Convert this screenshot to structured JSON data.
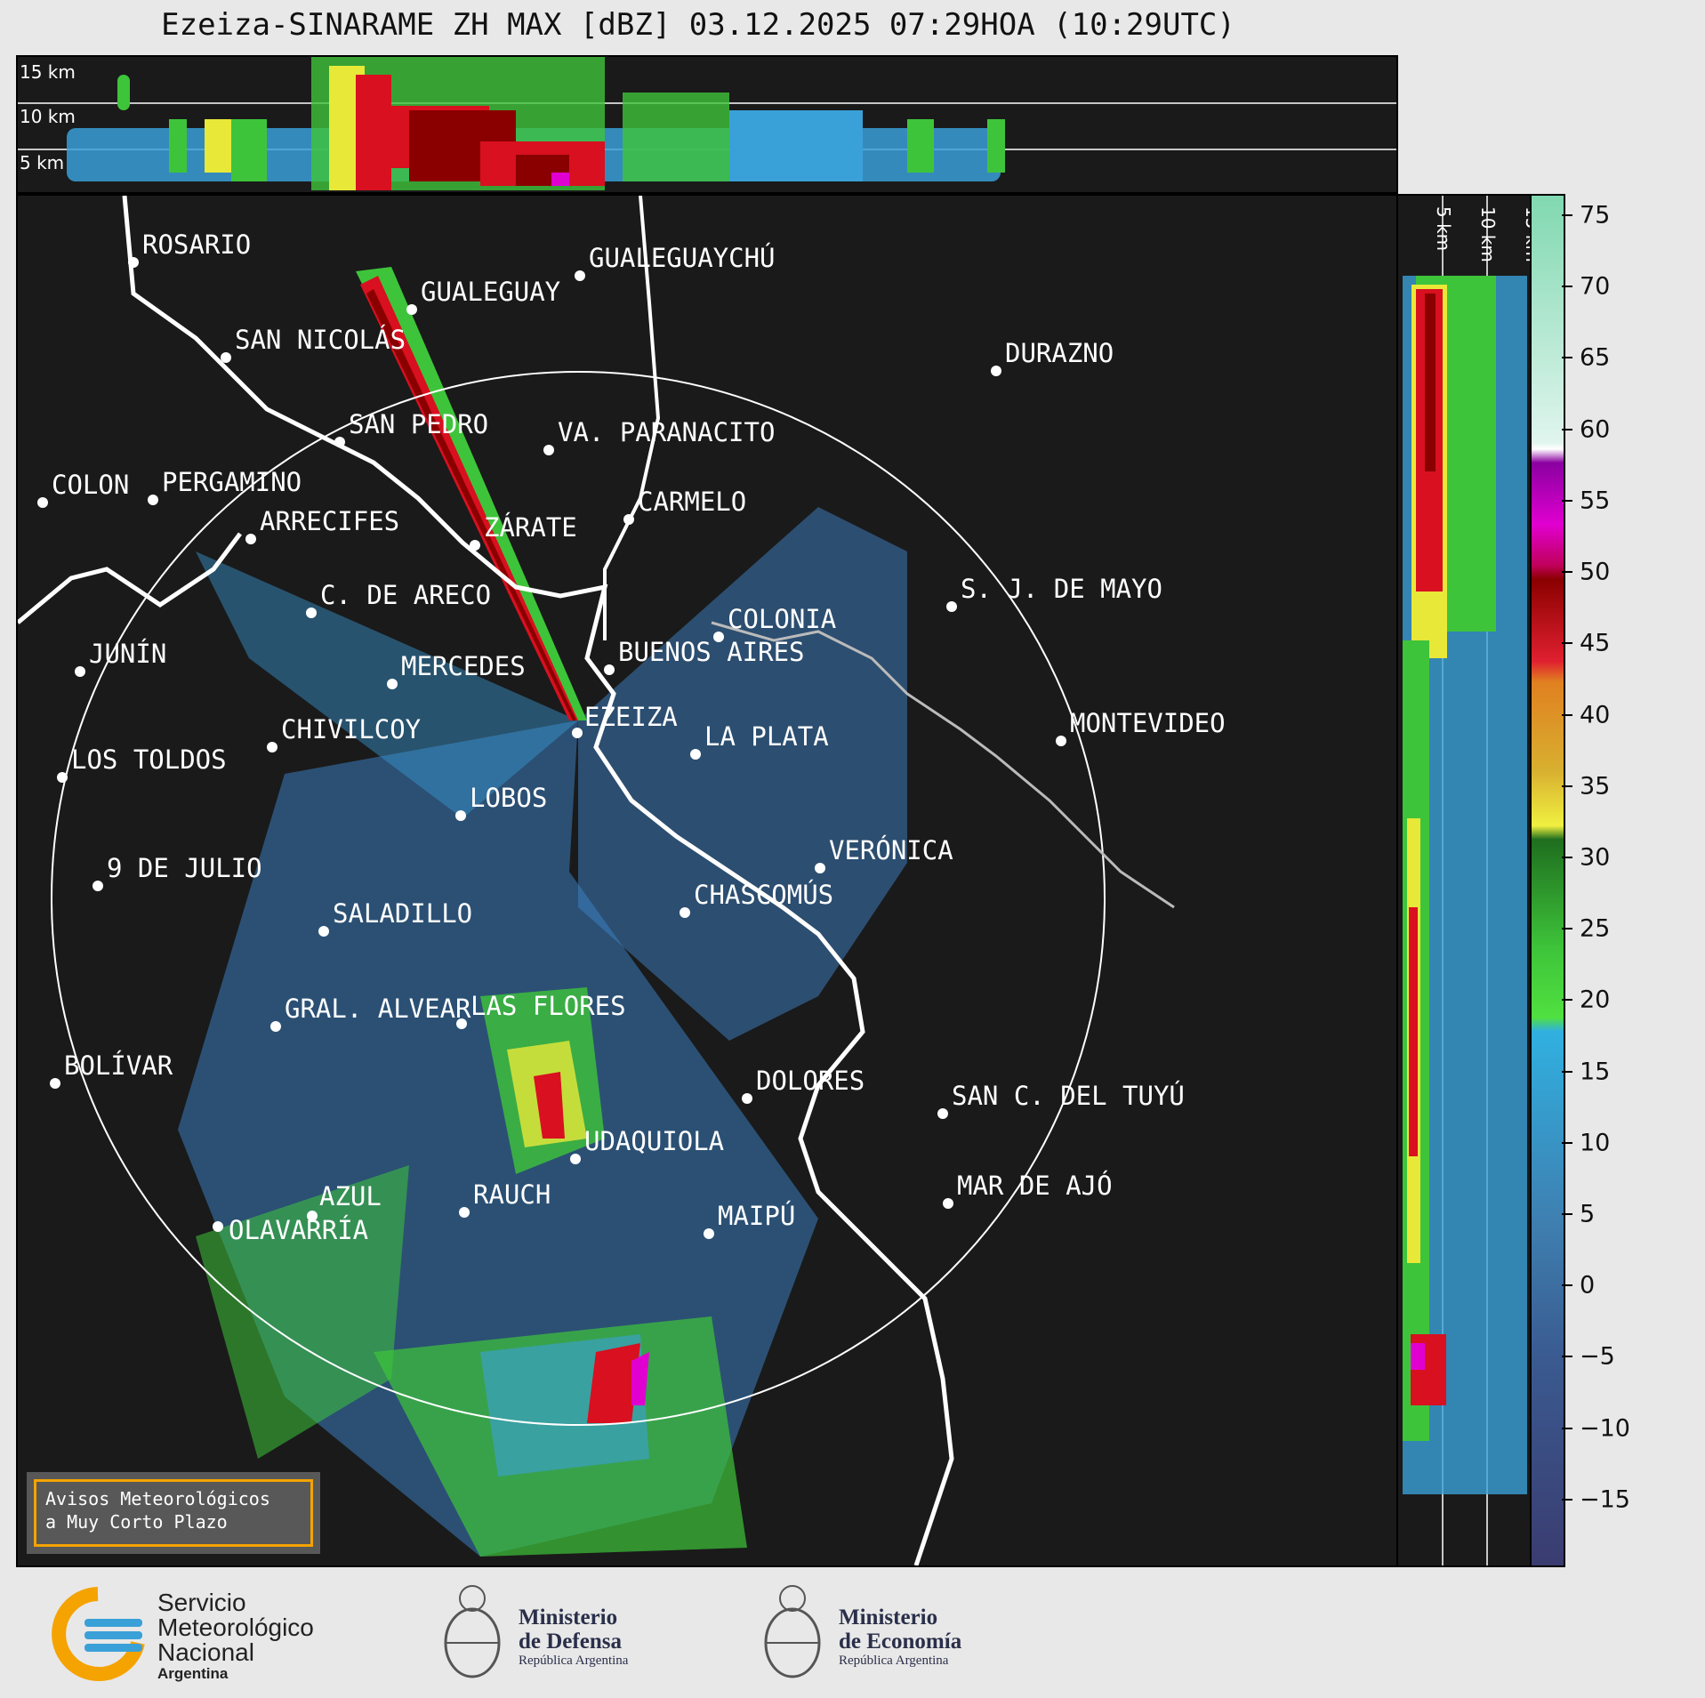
{
  "title": "Ezeiza-SINARAME ZH MAX [dBZ] 03.12.2025 07:29HOA (10:29UTC)",
  "height_labels": [
    "15 km",
    "10 km",
    "5 km"
  ],
  "cities": [
    {
      "name": "ROSARIO"
    },
    {
      "name": "GUALEGUAYCHÚ"
    },
    {
      "name": "GUALEGUAY"
    },
    {
      "name": "SAN NICOLÁS"
    },
    {
      "name": "DURAZNO"
    },
    {
      "name": "SAN PEDRO"
    },
    {
      "name": "VA. PARANACITO"
    },
    {
      "name": "COLON"
    },
    {
      "name": "PERGAMINO"
    },
    {
      "name": "CARMELO"
    },
    {
      "name": "ARRECIFES"
    },
    {
      "name": "ZÁRATE"
    },
    {
      "name": "S. J. DE MAYO"
    },
    {
      "name": "C. DE ARECO"
    },
    {
      "name": "COLONIA"
    },
    {
      "name": "JUNÍN"
    },
    {
      "name": "BUENOS AIRES"
    },
    {
      "name": "MERCEDES"
    },
    {
      "name": "EZEIZA"
    },
    {
      "name": "MONTEVIDEO"
    },
    {
      "name": "CHIVILCOY"
    },
    {
      "name": "LA PLATA"
    },
    {
      "name": "LOS TOLDOS"
    },
    {
      "name": "LOBOS"
    },
    {
      "name": "VERÓNICA"
    },
    {
      "name": "9 DE JULIO"
    },
    {
      "name": "CHASCOMÚS"
    },
    {
      "name": "SALADILLO"
    },
    {
      "name": "GRAL. ALVEAR"
    },
    {
      "name": "LAS FLORES"
    },
    {
      "name": "BOLÍVAR"
    },
    {
      "name": "DOLORES"
    },
    {
      "name": "SAN C. DEL TUYÚ"
    },
    {
      "name": "UDAQUIOLA"
    },
    {
      "name": "MAR DE AJÓ"
    },
    {
      "name": "AZUL"
    },
    {
      "name": "RAUCH"
    },
    {
      "name": "MAIPÚ"
    },
    {
      "name": "OLAVARRÍA"
    }
  ],
  "colorbar": {
    "unit": "dBZ",
    "ticks": [
      75,
      70,
      65,
      60,
      55,
      50,
      45,
      40,
      35,
      30,
      25,
      20,
      15,
      10,
      5,
      0,
      -5,
      -10,
      -15
    ],
    "range": [
      -19.5,
      76.5
    ],
    "colors": {
      "low": "#2f3a6e",
      "mid_low": "#3e6fb0",
      "light_blue": "#3aa0d8",
      "green": "#3ec43a",
      "dark_green": "#1f6e1f",
      "yellow": "#e8e838",
      "orange": "#e0a020",
      "red": "#d81020",
      "dark_red": "#8a0000",
      "magenta": "#e000d0",
      "purple": "#8a00a0",
      "white": "#ffffff",
      "teal": "#80d8b0"
    }
  },
  "warning_box": {
    "line1": "Avisos Meteorológicos",
    "line2": "a Muy Corto Plazo",
    "border_color": "#f5a300"
  },
  "footer": {
    "smn": {
      "line1": "Servicio",
      "line2": "Meteorológico",
      "line3": "Nacional",
      "line4": "Argentina"
    },
    "defensa": {
      "line1": "Ministerio",
      "line2": "de Defensa",
      "line3": "República Argentina"
    },
    "economia": {
      "line1": "Ministerio",
      "line2": "de Economía",
      "line3": "República Argentina"
    }
  }
}
